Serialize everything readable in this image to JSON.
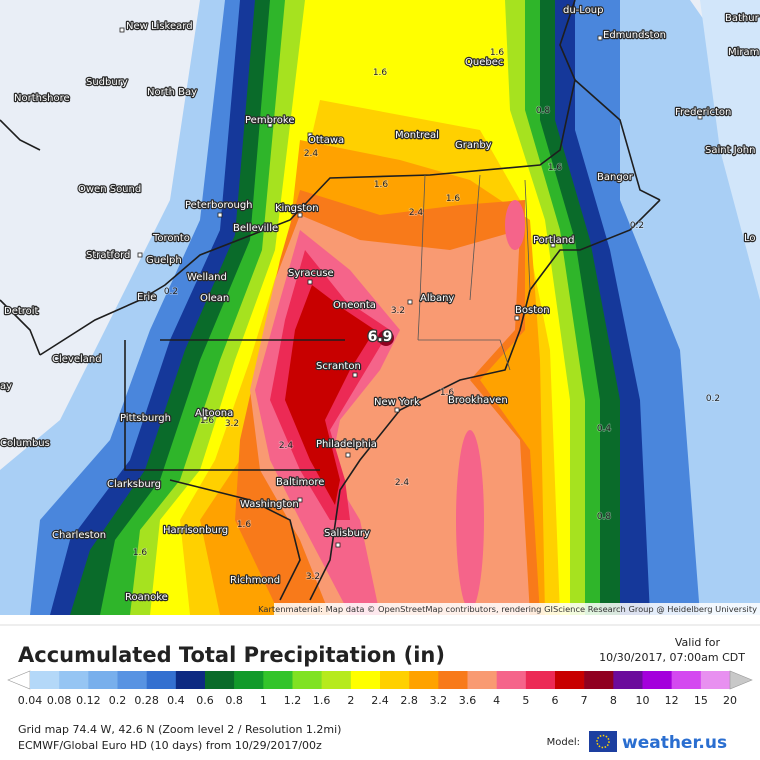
{
  "map": {
    "cities": [
      "New Liskeard",
      "Northshore",
      "Sudbury",
      "North Bay",
      "Pembroke",
      "Ottawa",
      "Montreal",
      "Granby",
      "Quebec",
      "du-Loup",
      "Edmundston",
      "Bathur",
      "Miram",
      "Fredericton",
      "Saint John",
      "Bangor",
      "Portland",
      "Owen Sound",
      "Peterborough",
      "Kingston",
      "Belleville",
      "Toronto",
      "Stratford",
      "Guelph",
      "Welland",
      "Syracuse",
      "Detroit",
      "Erie",
      "Olean",
      "Oneonta",
      "Albany",
      "Boston",
      "Cleveland",
      "Scranton",
      "New York",
      "Brookhaven",
      "Pittsburgh",
      "Altoona",
      "Columbus",
      "Philadelphia",
      "Clarksburg",
      "Baltimore",
      "Washington",
      "Charleston",
      "Harrisonburg",
      "Salisbury",
      "Richmond",
      "Roanoke",
      "Lo",
      "ay"
    ],
    "contour_labels": [
      "1.6",
      "1.6",
      "0.8",
      "1.6",
      "2.4",
      "1.6",
      "1.6",
      "2.4",
      "0.2",
      "0.2",
      "3.2",
      "1.6",
      "3.2",
      "2.4",
      "2.4",
      "0.2",
      "0.4",
      "0.8",
      "1.6",
      "1.6",
      "3.2",
      "1.6"
    ],
    "max_label": "6.9",
    "attribution": "Kartenmaterial: Map data © OpenStreetMap contributors, rendering GIScience Research Group @ Heidelberg University"
  },
  "panel": {
    "title": "Accumulated Total Precipitation (in)",
    "valid_label": "Valid for",
    "valid_time": "10/30/2017, 07:00am CDT",
    "legend": {
      "ticks": [
        "0.04",
        "0.08",
        "0.12",
        "0.2",
        "0.28",
        "0.4",
        "0.6",
        "0.8",
        "1",
        "1.2",
        "1.6",
        "2",
        "2.4",
        "2.8",
        "3.2",
        "3.6",
        "4",
        "5",
        "6",
        "7",
        "8",
        "10",
        "12",
        "15",
        "20"
      ],
      "colors": [
        "#ffffff",
        "#b4d8f8",
        "#96c5f3",
        "#78afec",
        "#5893e2",
        "#3470d0",
        "#0d2a82",
        "#0a6b2a",
        "#129a2b",
        "#33c42b",
        "#80e222",
        "#b6ea1d",
        "#ffff00",
        "#ffd000",
        "#ffa200",
        "#f87a1a",
        "#f99a72",
        "#f5648a",
        "#ec2a55",
        "#c80000",
        "#900020",
        "#6c0b9c",
        "#a400dc",
        "#d448f0",
        "#e890f0",
        "#c8c8c8"
      ]
    },
    "grid_info": "Grid map 74.4 W, 42.6 N (Zoom level 2 / Resolution 1.2mi)",
    "model_info": "ECMWF/Global Euro HD (10 days) from 10/29/2017/00z",
    "model_label": "Model:",
    "brand": "weather.us"
  }
}
